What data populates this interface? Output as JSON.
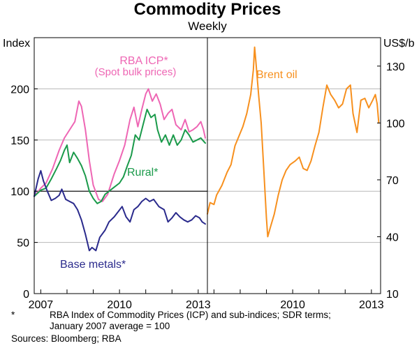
{
  "chart_data": {
    "type": "line",
    "title": "Commodity Prices",
    "subtitle": "Weekly",
    "left_panel": {
      "ylabel": "Index",
      "ylim": [
        0,
        250
      ],
      "yticks": [
        0,
        50,
        100,
        150,
        200
      ],
      "xlim": [
        2006.75,
        2013.35
      ],
      "xticks": [
        {
          "value": 2007.0,
          "label": "2007"
        },
        {
          "value": 2010.0,
          "label": "2010"
        },
        {
          "value": 2013.0,
          "label": "2013"
        }
      ],
      "reference_line": 100,
      "series": [
        {
          "name": "RBA ICP*",
          "color": "#ee66b4",
          "points": [
            [
              2006.75,
              95
            ],
            [
              2007.0,
              103
            ],
            [
              2007.2,
              108
            ],
            [
              2007.45,
              122
            ],
            [
              2007.7,
              140
            ],
            [
              2007.9,
              152
            ],
            [
              2008.1,
              160
            ],
            [
              2008.3,
              168
            ],
            [
              2008.45,
              188
            ],
            [
              2008.55,
              183
            ],
            [
              2008.7,
              160
            ],
            [
              2008.85,
              130
            ],
            [
              2009.0,
              106
            ],
            [
              2009.2,
              92
            ],
            [
              2009.35,
              90
            ],
            [
              2009.55,
              97
            ],
            [
              2009.8,
              117
            ],
            [
              2010.0,
              130
            ],
            [
              2010.2,
              145
            ],
            [
              2010.4,
              170
            ],
            [
              2010.55,
              182
            ],
            [
              2010.7,
              163
            ],
            [
              2010.85,
              180
            ],
            [
              2011.0,
              195
            ],
            [
              2011.1,
              200
            ],
            [
              2011.25,
              188
            ],
            [
              2011.4,
              195
            ],
            [
              2011.55,
              185
            ],
            [
              2011.7,
              170
            ],
            [
              2011.85,
              176
            ],
            [
              2012.0,
              180
            ],
            [
              2012.15,
              165
            ],
            [
              2012.35,
              160
            ],
            [
              2012.5,
              170
            ],
            [
              2012.65,
              158
            ],
            [
              2012.8,
              160
            ],
            [
              2012.95,
              163
            ],
            [
              2013.1,
              168
            ],
            [
              2013.2,
              160
            ],
            [
              2013.27,
              152
            ]
          ]
        },
        {
          "name": "Rural*",
          "color": "#1a9a4a",
          "points": [
            [
              2006.75,
              95
            ],
            [
              2007.0,
              101
            ],
            [
              2007.2,
              103
            ],
            [
              2007.4,
              112
            ],
            [
              2007.6,
              122
            ],
            [
              2007.75,
              130
            ],
            [
              2007.9,
              140
            ],
            [
              2008.0,
              145
            ],
            [
              2008.1,
              128
            ],
            [
              2008.25,
              138
            ],
            [
              2008.4,
              132
            ],
            [
              2008.55,
              125
            ],
            [
              2008.7,
              115
            ],
            [
              2008.85,
              100
            ],
            [
              2009.0,
              93
            ],
            [
              2009.15,
              88
            ],
            [
              2009.3,
              90
            ],
            [
              2009.45,
              97
            ],
            [
              2009.6,
              100
            ],
            [
              2009.8,
              104
            ],
            [
              2010.0,
              108
            ],
            [
              2010.15,
              114
            ],
            [
              2010.3,
              125
            ],
            [
              2010.45,
              135
            ],
            [
              2010.6,
              155
            ],
            [
              2010.75,
              150
            ],
            [
              2010.9,
              165
            ],
            [
              2011.05,
              180
            ],
            [
              2011.2,
              172
            ],
            [
              2011.35,
              175
            ],
            [
              2011.45,
              160
            ],
            [
              2011.6,
              148
            ],
            [
              2011.75,
              155
            ],
            [
              2011.9,
              145
            ],
            [
              2012.05,
              155
            ],
            [
              2012.2,
              145
            ],
            [
              2012.35,
              150
            ],
            [
              2012.5,
              160
            ],
            [
              2012.65,
              155
            ],
            [
              2012.8,
              148
            ],
            [
              2012.95,
              150
            ],
            [
              2013.1,
              152
            ],
            [
              2013.2,
              149
            ],
            [
              2013.27,
              147
            ]
          ]
        },
        {
          "name": "Base metals*",
          "color": "#2a2a8c",
          "points": [
            [
              2006.75,
              95
            ],
            [
              2006.9,
              112
            ],
            [
              2007.0,
              120
            ],
            [
              2007.1,
              110
            ],
            [
              2007.25,
              100
            ],
            [
              2007.4,
              91
            ],
            [
              2007.55,
              93
            ],
            [
              2007.7,
              96
            ],
            [
              2007.8,
              102
            ],
            [
              2007.95,
              92
            ],
            [
              2008.1,
              90
            ],
            [
              2008.25,
              88
            ],
            [
              2008.4,
              82
            ],
            [
              2008.55,
              72
            ],
            [
              2008.7,
              58
            ],
            [
              2008.85,
              42
            ],
            [
              2008.95,
              45
            ],
            [
              2009.1,
              42
            ],
            [
              2009.25,
              55
            ],
            [
              2009.45,
              62
            ],
            [
              2009.6,
              70
            ],
            [
              2009.8,
              75
            ],
            [
              2009.95,
              80
            ],
            [
              2010.1,
              85
            ],
            [
              2010.25,
              75
            ],
            [
              2010.4,
              70
            ],
            [
              2010.55,
              82
            ],
            [
              2010.7,
              85
            ],
            [
              2010.85,
              90
            ],
            [
              2011.0,
              93
            ],
            [
              2011.15,
              90
            ],
            [
              2011.3,
              92
            ],
            [
              2011.5,
              85
            ],
            [
              2011.7,
              82
            ],
            [
              2011.85,
              70
            ],
            [
              2012.0,
              74
            ],
            [
              2012.15,
              79
            ],
            [
              2012.3,
              75
            ],
            [
              2012.45,
              72
            ],
            [
              2012.6,
              70
            ],
            [
              2012.75,
              72
            ],
            [
              2012.9,
              76
            ],
            [
              2013.05,
              74
            ],
            [
              2013.15,
              70
            ],
            [
              2013.27,
              68
            ]
          ]
        }
      ],
      "labels": [
        "RBA ICP*",
        "(Spot bulk prices)",
        "Rural*",
        "Base metals*"
      ]
    },
    "right_panel": {
      "ylabel": "US$/b",
      "ylim": [
        10,
        145
      ],
      "yticks": [
        10,
        40,
        70,
        100,
        130
      ],
      "xlim": [
        2006.75,
        2013.35
      ],
      "xticks": [
        {
          "value": 2010.0,
          "label": "2010"
        },
        {
          "value": 2013.0,
          "label": "2013"
        }
      ],
      "series": [
        {
          "name": "Brent oil",
          "color": "#f7901e",
          "points": [
            [
              2006.75,
              52
            ],
            [
              2006.85,
              58
            ],
            [
              2007.0,
              57
            ],
            [
              2007.1,
              62
            ],
            [
              2007.3,
              67
            ],
            [
              2007.5,
              74
            ],
            [
              2007.65,
              78
            ],
            [
              2007.8,
              88
            ],
            [
              2007.95,
              93
            ],
            [
              2008.1,
              98
            ],
            [
              2008.25,
              105
            ],
            [
              2008.4,
              115
            ],
            [
              2008.5,
              128
            ],
            [
              2008.55,
              140
            ],
            [
              2008.6,
              132
            ],
            [
              2008.7,
              115
            ],
            [
              2008.8,
              100
            ],
            [
              2008.9,
              75
            ],
            [
              2009.0,
              50
            ],
            [
              2009.05,
              40
            ],
            [
              2009.15,
              45
            ],
            [
              2009.3,
              52
            ],
            [
              2009.45,
              62
            ],
            [
              2009.6,
              70
            ],
            [
              2009.75,
              75
            ],
            [
              2009.9,
              78
            ],
            [
              2010.1,
              80
            ],
            [
              2010.25,
              82
            ],
            [
              2010.4,
              76
            ],
            [
              2010.55,
              75
            ],
            [
              2010.7,
              80
            ],
            [
              2010.85,
              88
            ],
            [
              2011.0,
              95
            ],
            [
              2011.15,
              108
            ],
            [
              2011.3,
              120
            ],
            [
              2011.45,
              115
            ],
            [
              2011.6,
              112
            ],
            [
              2011.75,
              108
            ],
            [
              2011.9,
              110
            ],
            [
              2012.05,
              118
            ],
            [
              2012.2,
              120
            ],
            [
              2012.3,
              105
            ],
            [
              2012.45,
              95
            ],
            [
              2012.6,
              112
            ],
            [
              2012.75,
              113
            ],
            [
              2012.9,
              108
            ],
            [
              2013.05,
              112
            ],
            [
              2013.15,
              115
            ],
            [
              2013.22,
              110
            ],
            [
              2013.28,
              100
            ]
          ]
        }
      ],
      "labels": [
        "Brent oil"
      ]
    }
  },
  "footnotes": {
    "star": "*",
    "note_line1": "RBA Index of Commodity Prices (ICP) and sub-indices; SDR terms;",
    "note_line2": "January 2007 average = 100",
    "sources": "Sources: Bloomberg; RBA"
  }
}
